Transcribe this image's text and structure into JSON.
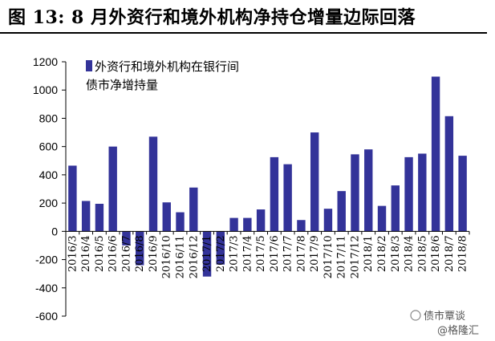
{
  "title": "图 13:  8 月外资行和境外机构净持仓增量边际回落",
  "chart_data": {
    "type": "bar",
    "categories": [
      "2016/3",
      "2016/4",
      "2016/5",
      "2016/6",
      "2016/7",
      "2016/8",
      "2016/9",
      "2016/10",
      "2016/11",
      "2016/12",
      "2017/1",
      "2017/2",
      "2017/3",
      "2017/4",
      "2017/5",
      "2017/6",
      "2017/7",
      "2017/8",
      "2017/9",
      "2017/10",
      "2017/11",
      "2017/12",
      "2018/1",
      "2018/2",
      "2018/3",
      "2018/4",
      "2018/5",
      "2018/6",
      "2018/7",
      "2018/8"
    ],
    "series": [
      {
        "name": "外资行和境外机构在银行间债市净增持量",
        "values": [
          465,
          215,
          195,
          600,
          -100,
          -240,
          670,
          205,
          135,
          310,
          -320,
          -235,
          95,
          95,
          155,
          525,
          475,
          80,
          700,
          160,
          285,
          545,
          580,
          180,
          325,
          525,
          550,
          1095,
          815,
          535
        ]
      }
    ],
    "legend_lines": [
      "外资行和境外机构在银行间",
      "债市净增持量"
    ],
    "ylim": [
      -600,
      1200
    ],
    "yticks": [
      1200,
      1000,
      800,
      600,
      400,
      200,
      0,
      -200,
      -400,
      -600
    ],
    "bar_color": "#333399",
    "legend_position": "top-left"
  },
  "watermark": {
    "line1": "债市覃谈",
    "line2": "@格隆汇"
  }
}
